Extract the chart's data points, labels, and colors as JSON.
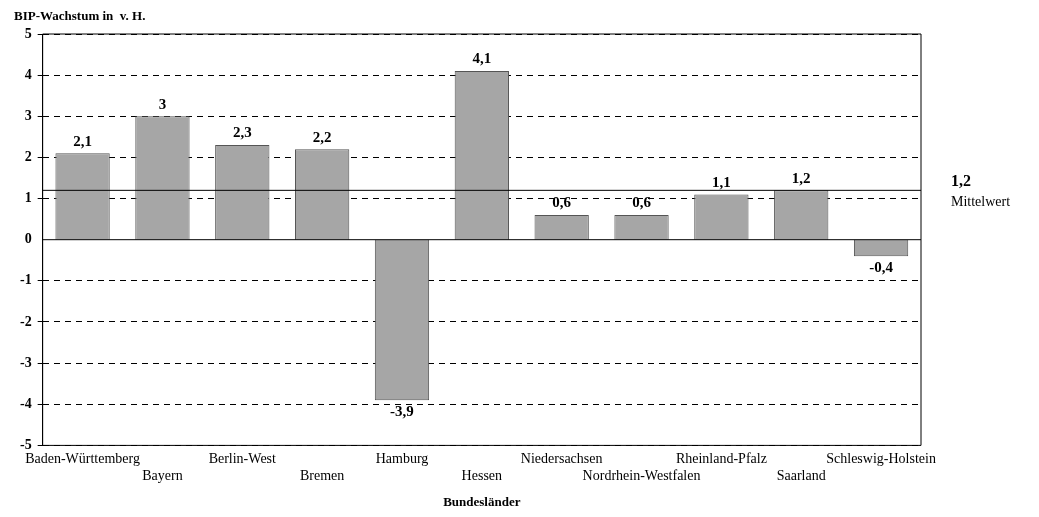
{
  "chart_data": {
    "type": "bar",
    "ylabel": "BIP-Wachstum in  v. H.",
    "xlabel": "Bundesländer",
    "categories": [
      "Baden-Württemberg",
      "Bayern",
      "Berlin-West",
      "Bremen",
      "Hamburg",
      "Hessen",
      "Niedersachsen",
      "Nordrhein-Westfalen",
      "Rheinland-Pfalz",
      "Saarland",
      "Schleswig-Holstein"
    ],
    "values": [
      2.1,
      3,
      2.3,
      2.2,
      -3.9,
      4.1,
      0.6,
      0.6,
      1.1,
      1.2,
      -0.4
    ],
    "value_labels": [
      "2,1",
      "3",
      "2,3",
      "2,2",
      "-3,9",
      "4,1",
      "0,6",
      "0,6",
      "1,1",
      "1,2",
      "-0,4"
    ],
    "color": "#a6a6a6",
    "ylim": [
      -5,
      5
    ],
    "yticks": [
      -5,
      -4,
      -3,
      -2,
      -1,
      0,
      1,
      2,
      3,
      4,
      5
    ],
    "grid": "y",
    "legend": false,
    "line_style": "dashed",
    "ref_lines": [
      {
        "axis": "y",
        "value": 1.2,
        "label": "1,2\nMittelwert"
      }
    ]
  }
}
